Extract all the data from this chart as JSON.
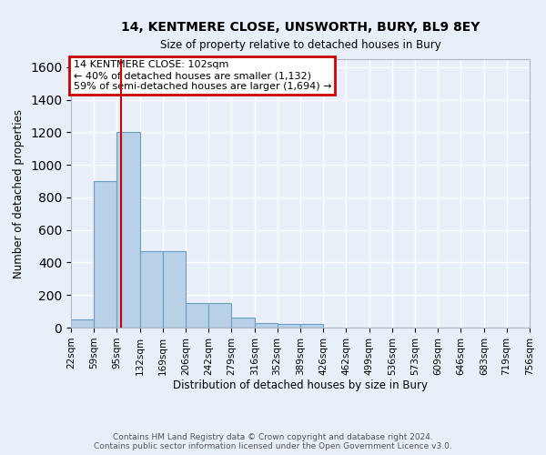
{
  "title1": "14, KENTMERE CLOSE, UNSWORTH, BURY, BL9 8EY",
  "title2": "Size of property relative to detached houses in Bury",
  "xlabel": "Distribution of detached houses by size in Bury",
  "ylabel": "Number of detached properties",
  "bar_heights": [
    50,
    900,
    1200,
    470,
    470,
    150,
    150,
    60,
    30,
    20,
    20,
    0,
    0,
    0,
    0,
    0,
    0,
    0,
    0,
    0
  ],
  "bin_labels": [
    "22sqm",
    "59sqm",
    "95sqm",
    "132sqm",
    "169sqm",
    "206sqm",
    "242sqm",
    "279sqm",
    "316sqm",
    "352sqm",
    "389sqm",
    "426sqm",
    "462sqm",
    "499sqm",
    "536sqm",
    "573sqm",
    "609sqm",
    "646sqm",
    "683sqm",
    "719sqm",
    "756sqm"
  ],
  "bar_color": "#b8d0e8",
  "bar_edge_color": "#6a9fc0",
  "background_color": "#e8eff8",
  "grid_color": "#ffffff",
  "annotation_text": "14 KENTMERE CLOSE: 102sqm\n← 40% of detached houses are smaller (1,132)\n59% of semi-detached houses are larger (1,694) →",
  "annotation_box_color": "#ffffff",
  "annotation_box_edge": "#cc0000",
  "vline_x": 102,
  "vline_color": "#cc0000",
  "ylim": [
    0,
    1650
  ],
  "yticks": [
    0,
    200,
    400,
    600,
    800,
    1000,
    1200,
    1400,
    1600
  ],
  "footer": "Contains HM Land Registry data © Crown copyright and database right 2024.\nContains public sector information licensed under the Open Government Licence v3.0.",
  "bin_edges": [
    22,
    59,
    95,
    132,
    169,
    206,
    242,
    279,
    316,
    352,
    389,
    426,
    462,
    499,
    536,
    573,
    609,
    646,
    683,
    719,
    756
  ]
}
